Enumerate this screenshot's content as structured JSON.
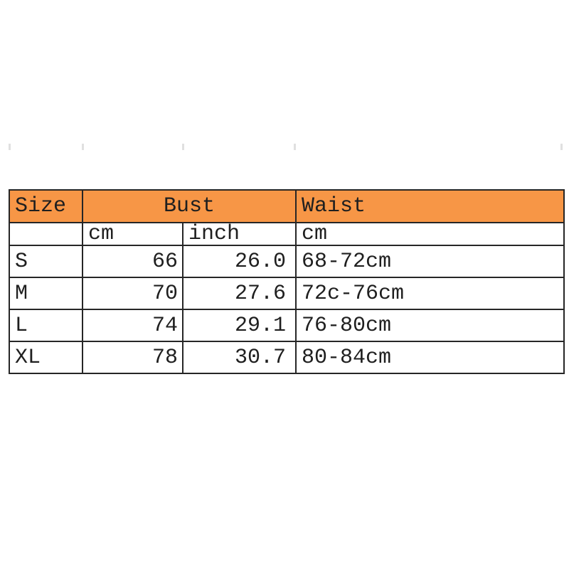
{
  "chart_data": {
    "type": "table",
    "description": "Garment size chart",
    "column_groups": [
      {
        "label": "Size",
        "span": 1
      },
      {
        "label": "Bust",
        "span": 2
      },
      {
        "label": "Waist",
        "span": 1
      }
    ],
    "header": {
      "size": "Size",
      "bust": "Bust",
      "waist": "Waist"
    },
    "units": {
      "size": "",
      "bust_cm": "cm",
      "bust_inch": "inch",
      "waist": "cm"
    },
    "rows": [
      {
        "size": "S",
        "bust_cm": "66",
        "bust_inch": "26.0",
        "waist": "68-72cm"
      },
      {
        "size": "M",
        "bust_cm": "70",
        "bust_inch": "27.6",
        "waist": "72c-76cm"
      },
      {
        "size": "L",
        "bust_cm": "74",
        "bust_inch": "29.1",
        "waist": "76-80cm"
      },
      {
        "size": "XL",
        "bust_cm": "78",
        "bust_inch": "30.7",
        "waist": "80-84cm"
      }
    ],
    "colors": {
      "header_bg": "#f79646",
      "border": "#262626",
      "text": "#1f1f1f",
      "page_bg": "#ffffff",
      "artifact_tick": "#e0e0e0"
    },
    "layout_hints": {
      "bust_spans_two_columns": true,
      "grid": "on"
    }
  }
}
